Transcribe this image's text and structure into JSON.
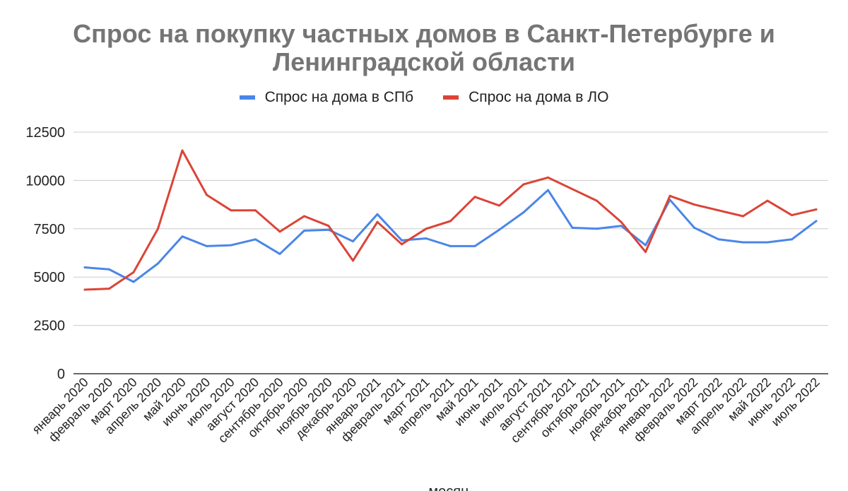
{
  "chart_data": {
    "type": "line",
    "title": "Спрос на покупку частных домов в Санкт-Петербурге и Ленинградской области",
    "xlabel": "месяц",
    "ylabel": "",
    "ylim": [
      0,
      12500
    ],
    "yticks": [
      0,
      2500,
      5000,
      7500,
      10000,
      12500
    ],
    "grid": true,
    "legend_position": "top",
    "categories": [
      "январь 2020",
      "февраль 2020",
      "март 2020",
      "апрель 2020",
      "май 2020",
      "июнь 2020",
      "июль 2020",
      "август 2020",
      "сентябрь 2020",
      "октябрь 2020",
      "ноябрь 2020",
      "декабрь 2020",
      "январь 2021",
      "февраль 2021",
      "март 2021",
      "апрель 2021",
      "май 2021",
      "июнь 2021",
      "июль 2021",
      "август 2021",
      "сентябрь 2021",
      "октябрь 2021",
      "ноябрь 2021",
      "декабрь 2021",
      "январь 2022",
      "февраль 2022",
      "март 2022",
      "апрель 2022",
      "май 2022",
      "июнь 2022",
      "июль 2022"
    ],
    "series": [
      {
        "name": "Спрос на дома в СПб",
        "color": "#4a86e8",
        "values": [
          5500,
          5400,
          4750,
          5700,
          7100,
          6600,
          6650,
          6950,
          6200,
          7400,
          7450,
          6850,
          8250,
          6900,
          7000,
          6600,
          6600,
          7450,
          8350,
          9500,
          7550,
          7500,
          7650,
          6650,
          9000,
          7550,
          6950,
          6800,
          6800,
          6950,
          7900
        ]
      },
      {
        "name": "Спрос на дома в ЛО",
        "color": "#db4437",
        "values": [
          4350,
          4400,
          5250,
          7500,
          11550,
          9250,
          8450,
          8450,
          7350,
          8150,
          7650,
          5850,
          7850,
          6700,
          7500,
          7900,
          9150,
          8700,
          9800,
          10150,
          9550,
          8950,
          7850,
          6300,
          9200,
          8750,
          8450,
          8150,
          8950,
          8200,
          8500
        ]
      }
    ]
  }
}
